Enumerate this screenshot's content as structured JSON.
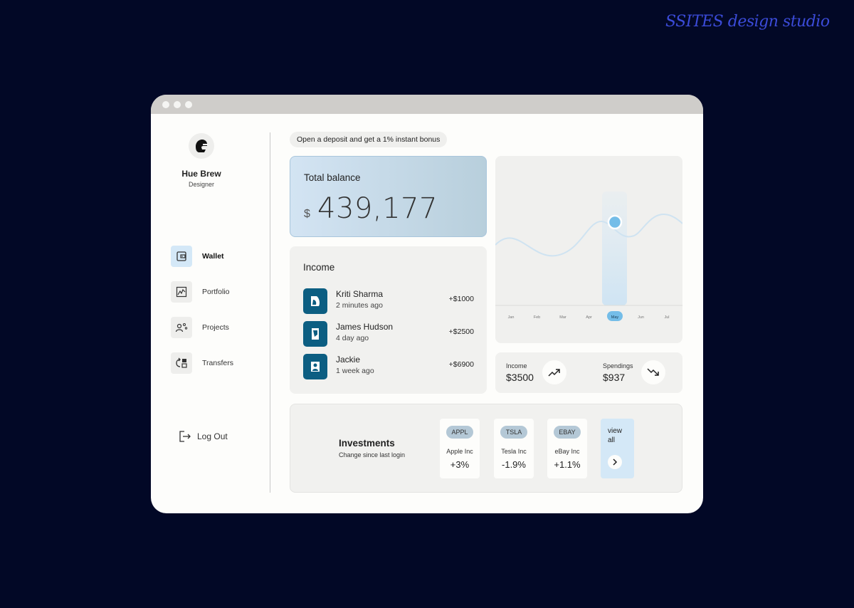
{
  "watermark": "SSITES design studio",
  "user": {
    "name": "Hue Brew",
    "role": "Designer"
  },
  "nav": {
    "items": [
      {
        "label": "Wallet",
        "icon": "wallet-icon",
        "active": true
      },
      {
        "label": "Portfolio",
        "icon": "chart-icon",
        "active": false
      },
      {
        "label": "Projects",
        "icon": "people-icon",
        "active": false
      },
      {
        "label": "Transfers",
        "icon": "transfer-icon",
        "active": false
      }
    ],
    "logout": "Log Out"
  },
  "banner": "Open a deposit and get a 1% instant bonus",
  "balance": {
    "title": "Total balance",
    "currency": "$",
    "amount": "439,177"
  },
  "income": {
    "title": "Income",
    "items": [
      {
        "name": "Kriti Sharma",
        "time": "2 minutes ago",
        "amount": "+$1000"
      },
      {
        "name": "James Hudson",
        "time": "4 day ago",
        "amount": "+$2500"
      },
      {
        "name": "Jackie",
        "time": "1 week ago",
        "amount": "+$6900"
      }
    ]
  },
  "chart_data": {
    "type": "line",
    "categories": [
      "Jan",
      "Feb",
      "Mar",
      "Apr",
      "May",
      "Jun",
      "Jul"
    ],
    "selected": "May",
    "title": "",
    "xlabel": "",
    "ylabel": ""
  },
  "stats": {
    "income": {
      "label": "Income",
      "value": "$3500"
    },
    "spendings": {
      "label": "Spendings",
      "value": "$937"
    }
  },
  "investments": {
    "title": "Investments",
    "subtitle": "Change since last login",
    "cards": [
      {
        "ticker": "APPL",
        "company": "Apple Inc",
        "change": "+3%"
      },
      {
        "ticker": "TSLA",
        "company": "Tesla Inc",
        "change": "-1.9%"
      },
      {
        "ticker": "EBAY",
        "company": "eBay Inc",
        "change": "+1.1%"
      }
    ],
    "view_all": "view all"
  },
  "colors": {
    "accent": "#74bde8",
    "brand": "#0c5e82",
    "background": "#020826"
  }
}
